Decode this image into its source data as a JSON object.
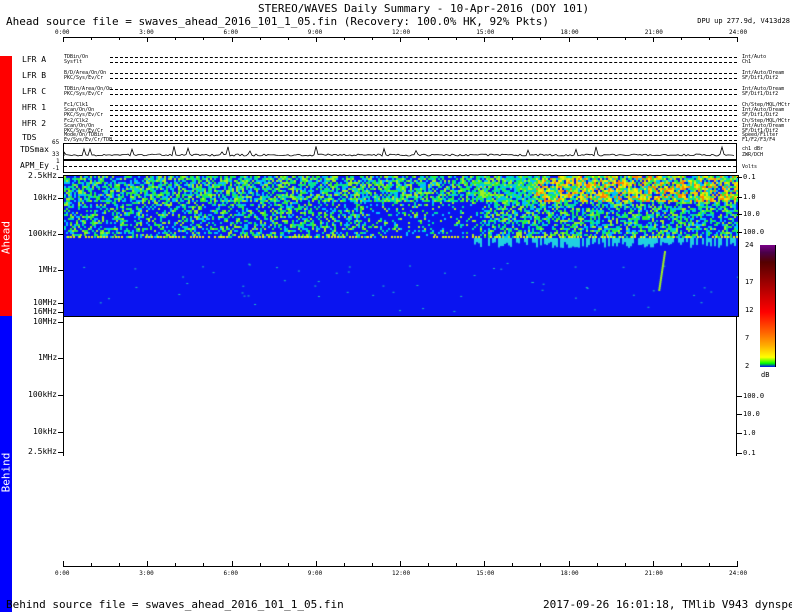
{
  "title": "STEREO/WAVES Daily Summary - 10-Apr-2016 (DOY 101)",
  "ahead_source": "Ahead source file = swaves_ahead_2016_101_1_05.fin (Recovery: 100.0% HK,  92% Pkts)",
  "dpu_info": "DPU up 277.9d, V413d28",
  "behind_source": "Behind source file = swaves_ahead_2016_101_1_05.fin",
  "footer_stamp": "2017-09-26 16:01:18, TMlib V943 dynspec V210",
  "side_labels": {
    "ahead": "Ahead",
    "behind": "Behind"
  },
  "colors": {
    "ahead": "#ff0000",
    "behind": "#0000ff"
  },
  "time_ticks": [
    "0:00",
    "3:00",
    "6:00",
    "9:00",
    "12:00",
    "15:00",
    "18:00",
    "21:00",
    "24:00"
  ],
  "panels": [
    {
      "name": "LFR A",
      "left": [
        "TDBin/On",
        "Sysflt"
      ],
      "right": [
        "Int/Auto",
        "Ch1"
      ]
    },
    {
      "name": "LFR B",
      "left": [
        "B/D/Area/On/On",
        "PKC/Sys/Ev/Cr"
      ],
      "right": [
        "Int/Auto/Dream",
        "SF/Dif1/Dif2"
      ]
    },
    {
      "name": "LFR C",
      "left": [
        "TDBin/Area/On/On",
        "PKC/Sys/Ev/Cr"
      ],
      "right": [
        "Int/Auto/Dream",
        "SF/Dif1/Dif2"
      ]
    },
    {
      "name": "HFR 1",
      "left": [
        "Fc1/Clk1",
        "Scan/On/On",
        "PKC/Sys/Ev/Cr"
      ],
      "right": [
        "Ch/Step/HQL/HCtr",
        "Int/Auto/Dream",
        "SF/Dif1/Dif2"
      ]
    },
    {
      "name": "HFR 2",
      "left": [
        "Fc2/Clk2",
        "Scan/On/On",
        "PKC/Sys/Ev/Cr"
      ],
      "right": [
        "Ch/Step/HQL/HCtr",
        "Int/Auto/Dream",
        "SF/Dif1/Dif2"
      ]
    },
    {
      "name": "TDS",
      "left": [
        "Mode/On/TDBin",
        "Ev/Sys/Ev/Cr/TDB"
      ],
      "right": [
        "Speed/Filter",
        "F1/F2/F3/F4"
      ]
    }
  ],
  "tdsmax": {
    "name": "TDSmax",
    "ticks": [
      "65",
      "33"
    ],
    "right": [
      "ch1 dBr",
      "ZWR/DCH"
    ]
  },
  "apm": {
    "name": "APM_Ey",
    "ticks": [
      "1",
      "-1"
    ],
    "right": [
      "Volts"
    ]
  },
  "freq_labels_ahead": [
    "2.5kHz",
    "10kHz",
    "100kHz",
    "1MHz",
    "10MHz",
    "16MHz"
  ],
  "freq_labels_behind": [
    "16MHz",
    "10MHz",
    "1MHz",
    "100kHz",
    "10kHz",
    "2.5kHz"
  ],
  "wave_labels_ahead": [
    "0.1",
    "1.0",
    "10.0",
    "100.0"
  ],
  "wave_labels_behind": [
    "100.0",
    "10.0",
    "1.0",
    "0.1"
  ],
  "colorbar": {
    "ticks": [
      "24",
      "17",
      "12",
      "7",
      "2"
    ],
    "unit": "dB",
    "range": [
      2,
      24
    ]
  }
}
